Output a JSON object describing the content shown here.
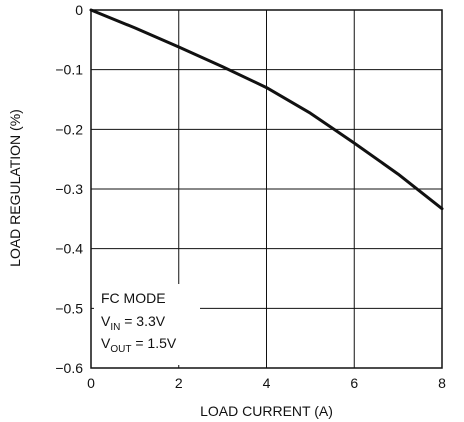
{
  "chart_data": {
    "type": "line",
    "title": "",
    "xlabel": "LOAD CURRENT (A)",
    "ylabel": "LOAD REGULATION (%)",
    "xlim": [
      0,
      8
    ],
    "ylim": [
      -0.6,
      0
    ],
    "grid": true,
    "x_ticks": [
      "0",
      "2",
      "4",
      "6",
      "8"
    ],
    "y_ticks": [
      "0",
      "−0.1",
      "−0.2",
      "−0.3",
      "−0.4",
      "−0.5",
      "−0.6"
    ],
    "series": [
      {
        "x": [
          0,
          1,
          2,
          3,
          4,
          5,
          6,
          7,
          8
        ],
        "y": [
          0,
          -0.03,
          -0.062,
          -0.095,
          -0.13,
          -0.173,
          -0.223,
          -0.275,
          -0.333
        ]
      }
    ],
    "annotation": {
      "line1": "FC MODE",
      "line2_main": "V",
      "line2_sub": "IN",
      "line2_rest": " = 3.3V",
      "line3_main": "V",
      "line3_sub": "OUT",
      "line3_rest": " = 1.5V"
    }
  }
}
